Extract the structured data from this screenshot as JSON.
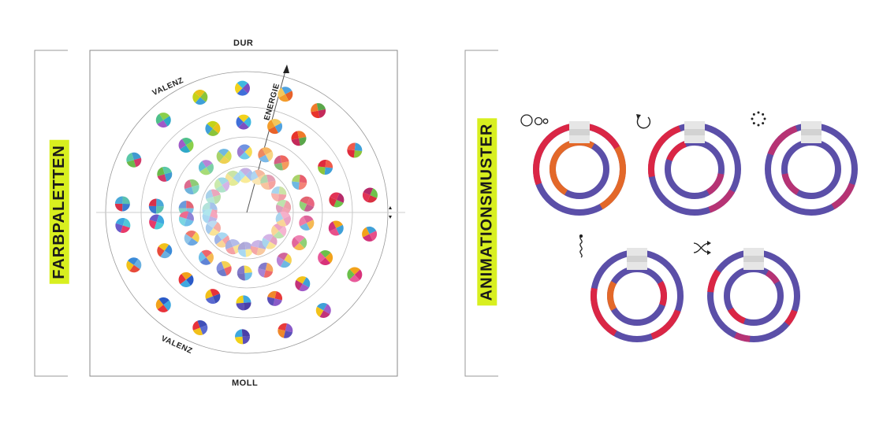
{
  "left_label": "FARBPALETTEN",
  "right_label": "ANIMATIONSMUSTER",
  "top_label": "DUR",
  "bottom_label": "MOLL",
  "valence_label_top": "VALENZ",
  "valence_label_bottom": "VALENZ",
  "energy_label": "ENERGIE",
  "accent_color": "#d8ef1f",
  "ring_base_color": "#5b4fa8",
  "ring_warm_colors": [
    "#e8213a",
    "#f26a1b",
    "#c0306e"
  ],
  "animation_patterns": [
    {
      "icon": "bubbles-icon"
    },
    {
      "icon": "rotate-icon"
    },
    {
      "icon": "dotted-circle-icon"
    },
    {
      "icon": "wave-icon"
    },
    {
      "icon": "shuffle-icon"
    }
  ]
}
